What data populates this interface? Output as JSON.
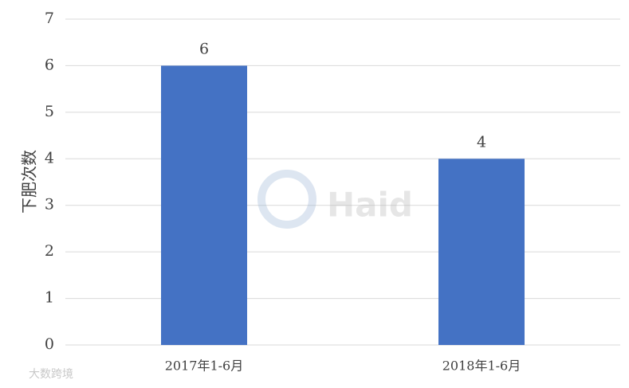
{
  "chart_data": {
    "type": "bar",
    "y_label": "下肥次数",
    "categories": [
      "2017年1-6月",
      "2018年1-6月"
    ],
    "values": [
      6,
      4
    ],
    "color": "#4472c4",
    "ylim": [
      0,
      7
    ],
    "yticks": [
      0,
      1,
      2,
      3,
      4,
      5,
      6,
      7
    ],
    "grid": true,
    "data_labels": true
  },
  "watermarks": [
    "Haid",
    "大数跨境"
  ]
}
